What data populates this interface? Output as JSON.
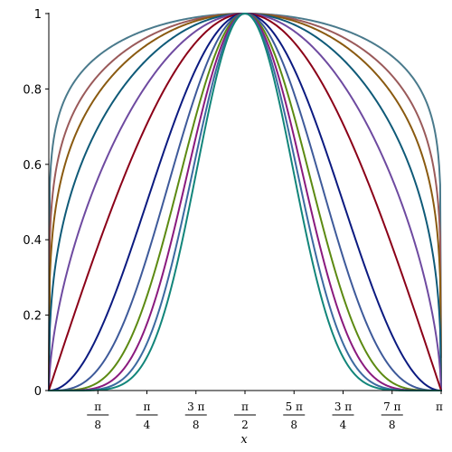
{
  "chart_data": {
    "type": "line",
    "title": "",
    "xlabel": "x",
    "ylabel": "",
    "xlim": [
      0,
      3.14159265
    ],
    "ylim": [
      0,
      1
    ],
    "grid": false,
    "legend": "none",
    "x_ticks": [
      {
        "num": "π",
        "den": "8",
        "value": 0.39269908
      },
      {
        "num": "π",
        "den": "4",
        "value": 0.78539816
      },
      {
        "num": "3 π",
        "den": "8",
        "value": 1.17809725
      },
      {
        "num": "π",
        "den": "2",
        "value": 1.57079633
      },
      {
        "num": "5 π",
        "den": "8",
        "value": 1.96349541
      },
      {
        "num": "3 π",
        "den": "4",
        "value": 2.35619449
      },
      {
        "num": "7 π",
        "den": "8",
        "value": 2.74889357
      },
      {
        "num": "π",
        "den": "",
        "value": 3.14159265
      }
    ],
    "y_ticks": [
      {
        "label": "0",
        "value": 0
      },
      {
        "label": "0.2",
        "value": 0.2
      },
      {
        "label": "0.4",
        "value": 0.4
      },
      {
        "label": "0.6",
        "value": 0.6
      },
      {
        "label": "0.8",
        "value": 0.8
      },
      {
        "label": "1",
        "value": 1
      }
    ],
    "function_form": "y = sin(x)^k",
    "series": [
      {
        "exponent": 0.125,
        "color": "#4a7a8c"
      },
      {
        "exponent": 0.1875,
        "color": "#9a5a5a"
      },
      {
        "exponent": 0.25,
        "color": "#8a5a10"
      },
      {
        "exponent": 0.375,
        "color": "#0f5a78"
      },
      {
        "exponent": 0.6,
        "color": "#6e4aa0"
      },
      {
        "exponent": 1,
        "color": "#8b0018"
      },
      {
        "exponent": 2,
        "color": "#0b1a80"
      },
      {
        "exponent": 3,
        "color": "#3e5a9a"
      },
      {
        "exponent": 4,
        "color": "#5c8a12"
      },
      {
        "exponent": 5,
        "color": "#8a1a7e"
      },
      {
        "exponent": 6,
        "color": "#3c6aa0"
      },
      {
        "exponent": 7,
        "color": "#12857a"
      }
    ]
  }
}
